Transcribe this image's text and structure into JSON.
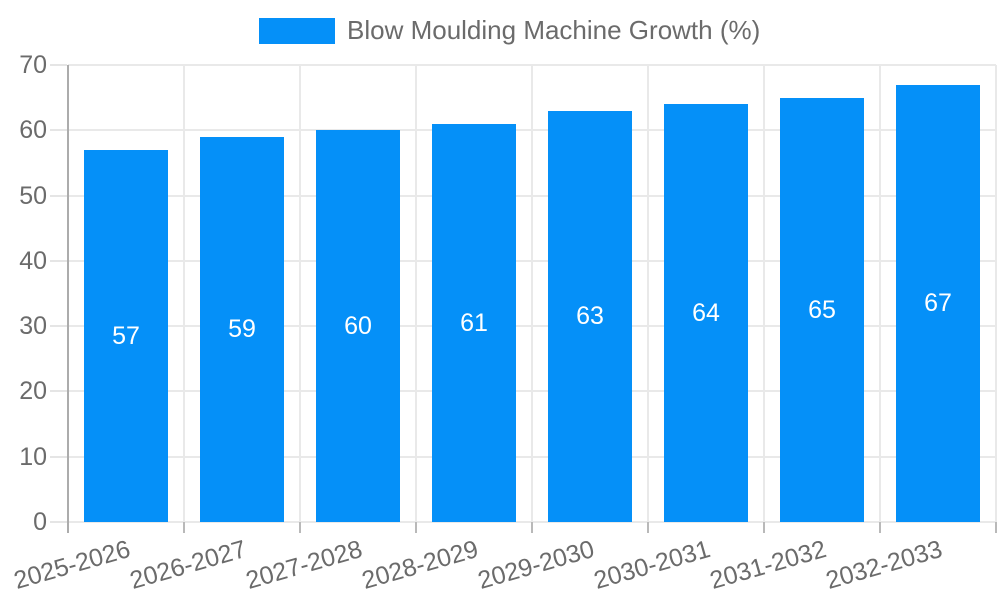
{
  "chart_data": {
    "type": "bar",
    "title": "Blow Moulding Machine Growth (%)",
    "legend": {
      "label": "Blow Moulding Machine Growth (%)",
      "position": "top"
    },
    "categories": [
      "2025-2026",
      "2026-2027",
      "2027-2028",
      "2028-2029",
      "2029-2030",
      "2030-2031",
      "2031-2032",
      "2032-2033"
    ],
    "values": [
      57,
      59,
      60,
      61,
      63,
      64,
      65,
      67
    ],
    "xlabel": "",
    "ylabel": "",
    "ylim": [
      0,
      70
    ],
    "yticks": [
      0,
      10,
      20,
      30,
      40,
      50,
      60,
      70
    ],
    "grid": true,
    "value_labels": "inside-middle",
    "colors": {
      "bar": "#0590F8",
      "value_label": "#FFFFFF",
      "tick_text": "#6B6B6B",
      "gridline": "#E9E9E9",
      "axis_line": "#ACACAC"
    }
  }
}
